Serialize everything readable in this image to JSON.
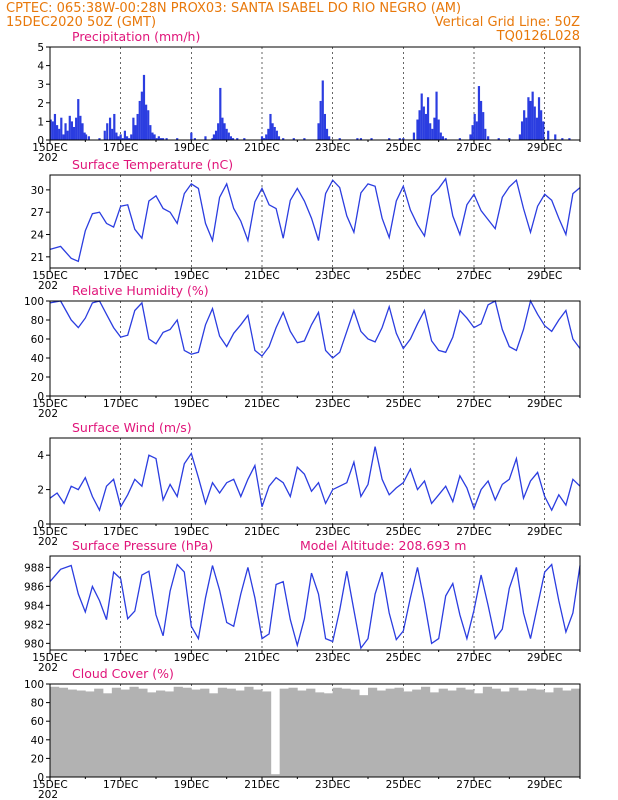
{
  "header": {
    "line1_left": "CPTEC:   065:38W-00:28N   PROX03: SANTA ISABEL DO RIO NEGRO (AM)",
    "line2_left": "15DEC2020 50Z (GMT)",
    "line2_right": "Vertical Grid Line: 50Z",
    "line3_right": "TQ0126L028"
  },
  "x_tick_labels": [
    "15DEC",
    "17DEC",
    "19DEC",
    "21DEC",
    "23DEC",
    "25DEC",
    "27DEC",
    "29DEC"
  ],
  "x_tick_sub": "202",
  "colors": {
    "line": "#2b3de0",
    "bar": "#2b3de0",
    "cloud": "#b2b2b2",
    "header": "#e8780a",
    "title": "#e0157a"
  },
  "chart_data": [
    {
      "type": "bar",
      "title": "Precipitation (mm/h)",
      "ylim": [
        0,
        5
      ],
      "yticks": [
        0,
        1,
        2,
        3,
        4,
        5
      ],
      "x_days": [
        0.02,
        0.08,
        0.14,
        0.2,
        0.26,
        0.32,
        0.38,
        0.44,
        0.5,
        0.56,
        0.62,
        0.68,
        0.74,
        0.8,
        0.86,
        0.92,
        0.98,
        1.02,
        1.1,
        1.4,
        1.55,
        1.62,
        1.7,
        1.76,
        1.82,
        1.88,
        1.94,
        2.0,
        2.06,
        2.12,
        2.18,
        2.24,
        2.3,
        2.36,
        2.42,
        2.48,
        2.54,
        2.6,
        2.66,
        2.72,
        2.78,
        2.84,
        2.9,
        2.96,
        3.02,
        3.08,
        3.14,
        3.2,
        3.3,
        3.6,
        4.0,
        4.1,
        4.4,
        4.6,
        4.64,
        4.7,
        4.76,
        4.82,
        4.88,
        4.94,
        5.0,
        5.06,
        5.12,
        5.18,
        5.3,
        5.5,
        6.0,
        6.06,
        6.12,
        6.18,
        6.24,
        6.3,
        6.36,
        6.42,
        6.48,
        6.6,
        6.9,
        7.2,
        7.6,
        7.66,
        7.72,
        7.78,
        7.84,
        7.9,
        8.2,
        8.7,
        8.8,
        9.1,
        9.6,
        9.9,
        10.0,
        10.3,
        10.4,
        10.46,
        10.52,
        10.58,
        10.64,
        10.7,
        10.76,
        10.82,
        10.88,
        10.94,
        11.0,
        11.06,
        11.12,
        11.2,
        11.6,
        11.9,
        11.96,
        12.02,
        12.08,
        12.14,
        12.2,
        12.26,
        12.32,
        12.4,
        12.7,
        13.0,
        13.3,
        13.36,
        13.42,
        13.48,
        13.54,
        13.6,
        13.66,
        13.72,
        13.78,
        13.84,
        13.9,
        13.96,
        14.1,
        14.3,
        14.5,
        14.7
      ],
      "values": [
        1.1,
        1.0,
        1.4,
        0.8,
        0.6,
        1.2,
        0.3,
        0.9,
        0.5,
        1.3,
        1.0,
        0.7,
        1.2,
        2.2,
        1.3,
        0.9,
        0.4,
        0.3,
        0.2,
        0.1,
        0.5,
        0.9,
        1.2,
        0.6,
        1.4,
        0.4,
        0.2,
        0.3,
        0.1,
        0.5,
        0.2,
        0.1,
        0.3,
        1.2,
        0.8,
        1.4,
        2.1,
        2.6,
        3.5,
        1.9,
        1.6,
        0.8,
        0.4,
        0.3,
        0.1,
        0.2,
        0.1,
        0.1,
        0.1,
        0.1,
        0.4,
        0.1,
        0.2,
        0.1,
        0.3,
        0.5,
        0.9,
        2.8,
        1.2,
        0.9,
        0.6,
        0.4,
        0.2,
        0.1,
        0.1,
        0.1,
        0.2,
        0.1,
        0.3,
        0.6,
        1.4,
        0.9,
        0.7,
        0.5,
        0.2,
        0.1,
        0.1,
        0.1,
        0.9,
        2.1,
        3.2,
        1.4,
        0.6,
        0.2,
        0.1,
        0.1,
        0.1,
        0.1,
        0.1,
        0.1,
        0.1,
        0.4,
        1.1,
        1.6,
        2.5,
        1.8,
        1.4,
        2.3,
        0.9,
        0.6,
        1.2,
        2.6,
        1.1,
        0.4,
        0.2,
        0.1,
        0.1,
        0.3,
        0.8,
        1.4,
        1.0,
        2.9,
        2.1,
        1.5,
        0.6,
        0.2,
        0.1,
        0.1,
        0.3,
        1.0,
        1.6,
        1.2,
        2.3,
        2.1,
        2.6,
        1.8,
        1.2,
        2.3,
        1.6,
        1.0,
        0.5,
        0.3,
        0.1,
        0.1
      ]
    },
    {
      "type": "line",
      "title": "Surface Temperature (nC)",
      "ylim": [
        19.5,
        32
      ],
      "yticks": [
        21,
        24,
        27,
        30
      ],
      "x_days": [
        0,
        0.3,
        0.6,
        0.8,
        1.0,
        1.2,
        1.4,
        1.6,
        1.8,
        2.0,
        2.2,
        2.4,
        2.6,
        2.8,
        3.0,
        3.2,
        3.4,
        3.6,
        3.8,
        4.0,
        4.2,
        4.4,
        4.6,
        4.8,
        5.0,
        5.2,
        5.4,
        5.6,
        5.8,
        6.0,
        6.2,
        6.4,
        6.6,
        6.8,
        7.0,
        7.2,
        7.4,
        7.6,
        7.8,
        8.0,
        8.2,
        8.4,
        8.6,
        8.8,
        9.0,
        9.2,
        9.4,
        9.6,
        9.8,
        10.0,
        10.2,
        10.4,
        10.6,
        10.8,
        11.0,
        11.2,
        11.4,
        11.6,
        11.8,
        12.0,
        12.2,
        12.4,
        12.6,
        12.8,
        13.0,
        13.2,
        13.4,
        13.6,
        13.8,
        14.0,
        14.2,
        14.4,
        14.6,
        14.8,
        15.0
      ],
      "values": [
        22,
        22.4,
        20.8,
        20.4,
        24.5,
        26.8,
        27,
        25.5,
        25,
        27.8,
        28,
        24.7,
        23.5,
        28.5,
        29.2,
        27.5,
        27,
        25.5,
        29.5,
        30.8,
        30.2,
        25.5,
        23.2,
        29,
        30.8,
        27.5,
        25.8,
        23.2,
        28.4,
        30.2,
        28,
        27.5,
        23.5,
        28.6,
        30.2,
        28.5,
        26.2,
        23.2,
        29.5,
        31.3,
        30.3,
        26.5,
        24.3,
        29.6,
        30.8,
        30.5,
        26.2,
        23.6,
        28.5,
        30.5,
        27.3,
        25.3,
        23.8,
        29.2,
        30.2,
        31.5,
        26.5,
        24,
        28,
        29.4,
        27.2,
        26,
        24.8,
        29,
        30.4,
        31.3,
        27.5,
        24.3,
        27.8,
        29.4,
        28.6,
        26.2,
        24,
        29.5,
        30.3
      ]
    },
    {
      "type": "line",
      "title": "Relative Humidity (%)",
      "ylim": [
        0,
        100
      ],
      "yticks": [
        0,
        20,
        40,
        60,
        80,
        100
      ],
      "x_days": [
        0,
        0.3,
        0.6,
        0.8,
        1.0,
        1.2,
        1.4,
        1.6,
        1.8,
        2.0,
        2.2,
        2.4,
        2.6,
        2.8,
        3.0,
        3.2,
        3.4,
        3.6,
        3.8,
        4.0,
        4.2,
        4.4,
        4.6,
        4.8,
        5.0,
        5.2,
        5.4,
        5.6,
        5.8,
        6.0,
        6.2,
        6.4,
        6.6,
        6.8,
        7.0,
        7.2,
        7.4,
        7.6,
        7.8,
        8.0,
        8.2,
        8.4,
        8.6,
        8.8,
        9.0,
        9.2,
        9.4,
        9.6,
        9.8,
        10.0,
        10.2,
        10.4,
        10.6,
        10.8,
        11.0,
        11.2,
        11.4,
        11.6,
        11.8,
        12.0,
        12.2,
        12.4,
        12.6,
        12.8,
        13.0,
        13.2,
        13.4,
        13.6,
        13.8,
        14.0,
        14.2,
        14.4,
        14.6,
        14.8,
        15.0
      ],
      "values": [
        98,
        100,
        80,
        72,
        82,
        98,
        100,
        86,
        72,
        62,
        64,
        90,
        98,
        60,
        55,
        67,
        70,
        80,
        48,
        44,
        46,
        75,
        92,
        63,
        52,
        66,
        75,
        85,
        48,
        42,
        52,
        72,
        88,
        68,
        56,
        58,
        75,
        88,
        48,
        40,
        46,
        68,
        90,
        68,
        60,
        57,
        72,
        94,
        66,
        50,
        60,
        76,
        90,
        58,
        48,
        46,
        62,
        90,
        82,
        72,
        76,
        96,
        100,
        70,
        52,
        48,
        70,
        100,
        86,
        74,
        68,
        80,
        90,
        60,
        50
      ]
    },
    {
      "type": "line",
      "title": "Surface Wind (m/s)",
      "ylim": [
        0,
        5
      ],
      "yticks": [
        0,
        2,
        4
      ],
      "x_days": [
        0,
        0.2,
        0.4,
        0.6,
        0.8,
        1.0,
        1.2,
        1.4,
        1.6,
        1.8,
        2.0,
        2.2,
        2.4,
        2.6,
        2.8,
        3.0,
        3.2,
        3.4,
        3.6,
        3.8,
        4.0,
        4.2,
        4.4,
        4.6,
        4.8,
        5.0,
        5.2,
        5.4,
        5.6,
        5.8,
        6.0,
        6.2,
        6.4,
        6.6,
        6.8,
        7.0,
        7.2,
        7.4,
        7.6,
        7.8,
        8.0,
        8.2,
        8.4,
        8.6,
        8.8,
        9.0,
        9.2,
        9.4,
        9.6,
        9.8,
        10.0,
        10.2,
        10.4,
        10.6,
        10.8,
        11.0,
        11.2,
        11.4,
        11.6,
        11.8,
        12.0,
        12.2,
        12.4,
        12.6,
        12.8,
        13.0,
        13.2,
        13.4,
        13.6,
        13.8,
        14.0,
        14.2,
        14.4,
        14.6,
        14.8,
        15.0
      ],
      "values": [
        1.5,
        1.8,
        1.2,
        2.2,
        2.0,
        2.7,
        1.6,
        0.8,
        2.2,
        2.6,
        1.0,
        1.7,
        2.6,
        2.2,
        4.0,
        3.8,
        1.4,
        2.3,
        1.6,
        3.5,
        4.1,
        2.7,
        1.2,
        2.4,
        1.8,
        2.4,
        2.6,
        1.6,
        2.6,
        3.4,
        1.0,
        2.2,
        2.7,
        2.4,
        1.6,
        3.3,
        2.9,
        1.9,
        2.4,
        1.2,
        2.0,
        2.2,
        2.4,
        3.6,
        1.6,
        2.3,
        4.5,
        2.6,
        1.7,
        2.1,
        2.4,
        3.2,
        2.0,
        2.5,
        1.2,
        1.7,
        2.2,
        1.3,
        2.8,
        2.1,
        0.9,
        2.0,
        2.5,
        1.4,
        2.3,
        2.6,
        3.8,
        1.5,
        2.5,
        3.0,
        1.6,
        0.8,
        1.7,
        1.1,
        2.6,
        2.2
      ]
    },
    {
      "type": "line",
      "title": "Surface Pressure (hPa)",
      "annotation": "Model Altitude: 208.693 m",
      "ylim": [
        979.3,
        989.2
      ],
      "yticks": [
        980,
        982,
        984,
        986,
        988
      ],
      "x_days": [
        0,
        0.3,
        0.6,
        0.8,
        1.0,
        1.2,
        1.4,
        1.6,
        1.8,
        2.0,
        2.2,
        2.4,
        2.6,
        2.8,
        3.0,
        3.2,
        3.4,
        3.6,
        3.8,
        4.0,
        4.2,
        4.4,
        4.6,
        4.8,
        5.0,
        5.2,
        5.4,
        5.6,
        5.8,
        6.0,
        6.2,
        6.4,
        6.6,
        6.8,
        7.0,
        7.2,
        7.4,
        7.6,
        7.8,
        8.0,
        8.2,
        8.4,
        8.6,
        8.8,
        9.0,
        9.2,
        9.4,
        9.6,
        9.8,
        10.0,
        10.2,
        10.4,
        10.6,
        10.8,
        11.0,
        11.2,
        11.4,
        11.6,
        11.8,
        12.0,
        12.2,
        12.4,
        12.6,
        12.8,
        13.0,
        13.2,
        13.4,
        13.6,
        13.8,
        14.0,
        14.2,
        14.4,
        14.6,
        14.8,
        15.0
      ],
      "values": [
        986.5,
        987.8,
        988.2,
        985.2,
        983.3,
        986,
        984.5,
        982.5,
        987.5,
        986.8,
        982.6,
        983.4,
        987.2,
        987.6,
        983,
        980.8,
        985.5,
        988.3,
        987.5,
        981.8,
        980.5,
        984.8,
        988.2,
        985.6,
        982.2,
        981.8,
        985.2,
        988,
        984.8,
        980.5,
        981,
        986.2,
        986.5,
        982.5,
        979.8,
        982.6,
        987.4,
        985.2,
        980.5,
        980.2,
        983.5,
        987.6,
        983.5,
        979.5,
        980.5,
        985.2,
        987.5,
        983.2,
        980.4,
        981.3,
        984.8,
        988,
        984.3,
        980,
        980.5,
        985,
        986.3,
        983,
        980.5,
        983.5,
        987.2,
        984,
        980.5,
        981.5,
        985.8,
        988,
        983.2,
        980.5,
        984,
        987.5,
        988.3,
        984.5,
        981.2,
        983.2,
        988.2
      ]
    },
    {
      "type": "bar",
      "title": "Cloud Cover (%)",
      "ylim": [
        0,
        100
      ],
      "yticks": [
        0,
        20,
        40,
        60,
        80,
        100
      ],
      "x_days": [
        0,
        0.25,
        0.5,
        0.75,
        1.0,
        1.25,
        1.5,
        1.75,
        2.0,
        2.25,
        2.5,
        2.75,
        3.0,
        3.25,
        3.5,
        3.75,
        4.0,
        4.25,
        4.5,
        4.75,
        5.0,
        5.25,
        5.5,
        5.75,
        6.0,
        6.25,
        6.5,
        6.75,
        7.0,
        7.25,
        7.5,
        7.75,
        8.0,
        8.25,
        8.5,
        8.75,
        9.0,
        9.25,
        9.5,
        9.75,
        10.0,
        10.25,
        10.5,
        10.75,
        11.0,
        11.25,
        11.5,
        11.75,
        12.0,
        12.25,
        12.5,
        12.75,
        13.0,
        13.25,
        13.5,
        13.75,
        14.0,
        14.25,
        14.5,
        14.75
      ],
      "values": [
        97,
        96,
        94,
        93,
        92,
        95,
        90,
        96,
        94,
        97,
        95,
        91,
        93,
        92,
        97,
        96,
        94,
        95,
        90,
        96,
        95,
        93,
        97,
        94,
        92,
        3,
        95,
        96,
        93,
        95,
        91,
        90,
        96,
        95,
        94,
        88,
        96,
        93,
        95,
        96,
        92,
        94,
        97,
        91,
        95,
        93,
        96,
        94,
        90,
        97,
        95,
        92,
        96,
        93,
        95,
        94,
        91,
        96,
        93,
        95
      ]
    }
  ]
}
